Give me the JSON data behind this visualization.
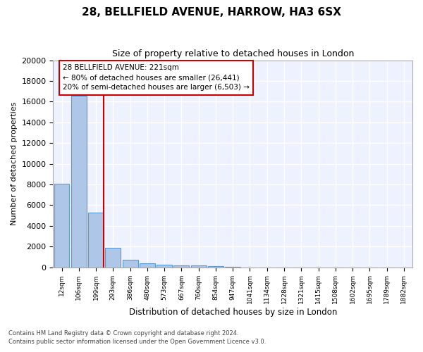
{
  "title": "28, BELLFIELD AVENUE, HARROW, HA3 6SX",
  "subtitle": "Size of property relative to detached houses in London",
  "xlabel": "Distribution of detached houses by size in London",
  "ylabel": "Number of detached properties",
  "categories": [
    "12sqm",
    "106sqm",
    "199sqm",
    "293sqm",
    "386sqm",
    "480sqm",
    "573sqm",
    "667sqm",
    "760sqm",
    "854sqm",
    "947sqm",
    "1041sqm",
    "1134sqm",
    "1228sqm",
    "1321sqm",
    "1415sqm",
    "1508sqm",
    "1602sqm",
    "1695sqm",
    "1789sqm",
    "1882sqm"
  ],
  "bar_values": [
    8100,
    16600,
    5300,
    1850,
    700,
    370,
    270,
    200,
    160,
    130,
    60,
    0,
    0,
    0,
    0,
    0,
    0,
    0,
    0,
    0,
    0
  ],
  "bar_color": "#aec6e8",
  "bar_edge_color": "#5b9bd5",
  "vline_color": "#cc0000",
  "annotation_text": "28 BELLFIELD AVENUE: 221sqm\n← 80% of detached houses are smaller (26,441)\n20% of semi-detached houses are larger (6,503) →",
  "annotation_box_color": "#cc0000",
  "ylim": [
    0,
    20000
  ],
  "yticks": [
    0,
    2000,
    4000,
    6000,
    8000,
    10000,
    12000,
    14000,
    16000,
    18000,
    20000
  ],
  "background_color": "#eef2ff",
  "grid_color": "#ffffff",
  "footer_line1": "Contains HM Land Registry data © Crown copyright and database right 2024.",
  "footer_line2": "Contains public sector information licensed under the Open Government Licence v3.0."
}
